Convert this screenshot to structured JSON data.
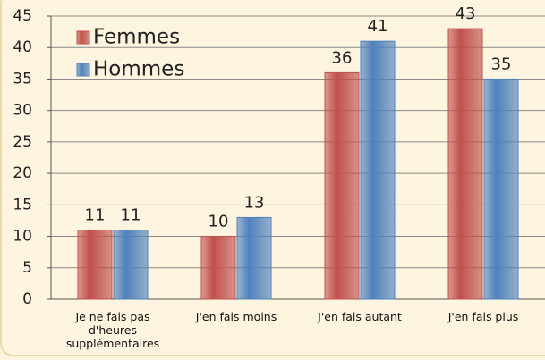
{
  "chart_data": {
    "type": "bar",
    "categories": [
      "Je ne fais pas d'heures supplémentaires",
      "J'en fais moins",
      "J'en fais autant",
      "J'en fais plus"
    ],
    "series": [
      {
        "name": "Femmes",
        "color": "#c0504d",
        "values": [
          11,
          10,
          36,
          43
        ]
      },
      {
        "name": "Hommes",
        "color": "#4f81bd",
        "values": [
          11,
          13,
          41,
          35
        ]
      }
    ],
    "ylim": [
      0,
      45
    ],
    "yticks": [
      0,
      5,
      10,
      15,
      20,
      25,
      30,
      35,
      40,
      45
    ],
    "grid": true,
    "legend": "top-left"
  }
}
